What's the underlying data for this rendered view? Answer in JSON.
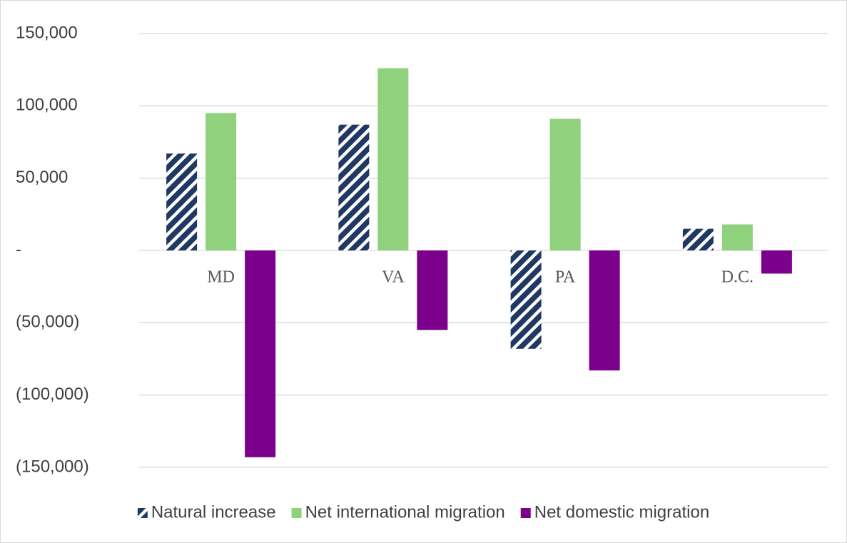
{
  "chart_data": {
    "type": "bar",
    "categories": [
      "MD",
      "VA",
      "PA",
      "D.C."
    ],
    "series": [
      {
        "name": "Natural increase",
        "color": "#1f3864",
        "pattern": "hatch",
        "values": [
          67000,
          87000,
          -68000,
          15000
        ]
      },
      {
        "name": "Net international migration",
        "color": "#8fd17c",
        "values": [
          95000,
          126000,
          91000,
          18000
        ]
      },
      {
        "name": "Net domestic migration",
        "color": "#7b008b",
        "values": [
          -143000,
          -55000,
          -83000,
          -16000
        ]
      }
    ],
    "ylim": [
      -150000,
      150000
    ],
    "yticks": [
      {
        "value": 150000,
        "label": "150,000"
      },
      {
        "value": 100000,
        "label": "100,000"
      },
      {
        "value": 50000,
        "label": "50,000"
      },
      {
        "value": 0,
        "label": "-"
      },
      {
        "value": -50000,
        "label": "(50,000)"
      },
      {
        "value": -100000,
        "label": "(100,000)"
      },
      {
        "value": -150000,
        "label": "(150,000)"
      }
    ],
    "grid": true,
    "legend": "bottom"
  }
}
